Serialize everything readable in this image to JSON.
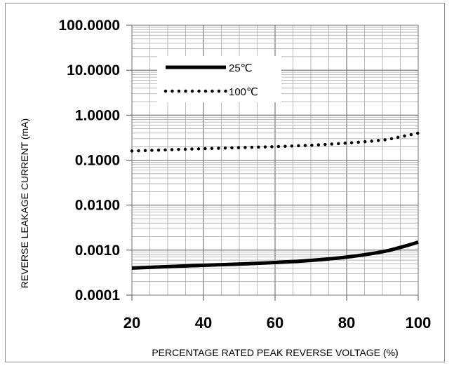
{
  "chart_data": {
    "type": "line",
    "xlabel": "PERCENTAGE RATED PEAK REVERSE VOLTAGE (%)",
    "ylabel": "REVERSE LEAKAGE CURRENT (mA)",
    "y_scale": "log",
    "xlim": [
      20,
      100
    ],
    "ylim": [
      0.0001,
      100
    ],
    "x_ticks": [
      20,
      40,
      60,
      80,
      100
    ],
    "x_tick_labels": [
      "20",
      "40",
      "60",
      "80",
      "100"
    ],
    "y_ticks": [
      0.0001,
      0.001,
      0.01,
      0.1,
      1,
      10,
      100
    ],
    "y_tick_labels": [
      "0.0001",
      "0.0010",
      "0.0100",
      "0.1000",
      "1.0000",
      "10.0000",
      "100.0000"
    ],
    "grid": true,
    "legend_position": "top-left",
    "series": [
      {
        "name": "25℃",
        "style": "solid",
        "color": "#000000",
        "x": [
          20,
          30,
          40,
          50,
          60,
          70,
          80,
          90,
          95,
          100
        ],
        "y": [
          0.0004,
          0.00043,
          0.00046,
          0.00049,
          0.00053,
          0.00059,
          0.0007,
          0.00092,
          0.00115,
          0.0015
        ]
      },
      {
        "name": "100℃",
        "style": "dotted",
        "color": "#000000",
        "x": [
          20,
          30,
          40,
          50,
          60,
          70,
          80,
          90,
          95,
          100
        ],
        "y": [
          0.16,
          0.17,
          0.18,
          0.19,
          0.2,
          0.215,
          0.24,
          0.28,
          0.33,
          0.4
        ]
      }
    ]
  }
}
